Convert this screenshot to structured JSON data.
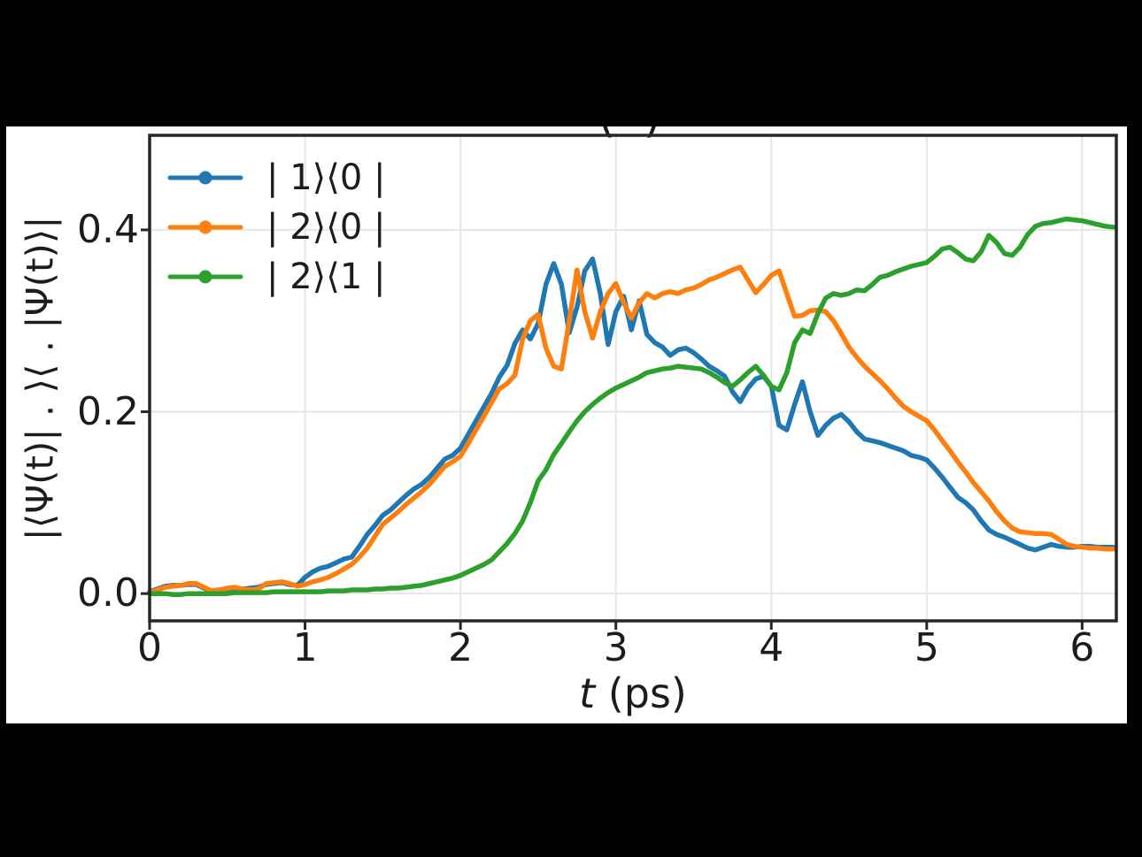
{
  "figure": {
    "background": "#000000",
    "canvas_color": "#ffffff",
    "title_fragment": "( )"
  },
  "axes": {
    "x": {
      "label_var": "t",
      "label_unit": " (ps)"
    },
    "y": {
      "label": "|⟨Ψ(t)| . ⟩⟨ . |Ψ(t)⟩|"
    },
    "spine_color": "#262626",
    "grid_color": "#e6e6e6",
    "tick_label_color": "#1c1c1c"
  },
  "legend": {
    "position": "upper left",
    "items": [
      {
        "label": "| 1⟩⟨0 |",
        "color": "#1f77b4",
        "marker": "circle"
      },
      {
        "label": "| 2⟩⟨0 |",
        "color": "#ff7f0e",
        "marker": "circle"
      },
      {
        "label": "| 2⟩⟨1 |",
        "color": "#2ca02c",
        "marker": "circle"
      }
    ]
  },
  "chart_data": {
    "type": "line",
    "xlabel": "t (ps)",
    "ylabel": "|⟨Ψ(t)| . ⟩⟨ . |Ψ(t)⟩|",
    "grid": true,
    "legend_position": "upper left",
    "xlim": [
      0,
      6.22
    ],
    "ylim": [
      -0.03,
      0.504
    ],
    "x_ticks": [
      0,
      1,
      2,
      3,
      4,
      5,
      6
    ],
    "x_tick_labels": [
      "0",
      "1",
      "2",
      "3",
      "4",
      "5",
      "6"
    ],
    "y_ticks": [
      0.0,
      0.2,
      0.4
    ],
    "y_tick_labels": [
      "0.0",
      "0.2",
      "0.4"
    ],
    "x_start": 0.0,
    "x_step": 0.05,
    "series": [
      {
        "name": "| 1⟩⟨0 |",
        "color": "#1f77b4",
        "values": [
          0.002,
          0.005,
          0.008,
          0.009,
          0.009,
          0.01,
          0.01,
          0.006,
          0.003,
          0.004,
          0.005,
          0.006,
          0.005,
          0.006,
          0.007,
          0.01,
          0.011,
          0.012,
          0.01,
          0.009,
          0.018,
          0.024,
          0.028,
          0.03,
          0.034,
          0.038,
          0.04,
          0.052,
          0.065,
          0.075,
          0.086,
          0.092,
          0.1,
          0.108,
          0.115,
          0.12,
          0.128,
          0.138,
          0.148,
          0.152,
          0.16,
          0.175,
          0.19,
          0.205,
          0.22,
          0.238,
          0.251,
          0.275,
          0.29,
          0.28,
          0.297,
          0.34,
          0.363,
          0.34,
          0.287,
          0.315,
          0.355,
          0.368,
          0.33,
          0.274,
          0.31,
          0.327,
          0.29,
          0.322,
          0.285,
          0.276,
          0.271,
          0.262,
          0.268,
          0.27,
          0.265,
          0.258,
          0.25,
          0.245,
          0.239,
          0.222,
          0.211,
          0.226,
          0.236,
          0.239,
          0.228,
          0.185,
          0.18,
          0.208,
          0.233,
          0.2,
          0.174,
          0.185,
          0.193,
          0.197,
          0.189,
          0.178,
          0.17,
          0.168,
          0.166,
          0.163,
          0.16,
          0.157,
          0.152,
          0.15,
          0.147,
          0.138,
          0.128,
          0.117,
          0.106,
          0.1,
          0.092,
          0.08,
          0.07,
          0.065,
          0.062,
          0.058,
          0.054,
          0.05,
          0.048,
          0.051,
          0.054,
          0.052,
          0.051,
          0.051,
          0.052,
          0.052,
          0.051,
          0.051,
          0.051
        ]
      },
      {
        "name": "| 2⟩⟨0 |",
        "color": "#ff7f0e",
        "values": [
          0.001,
          0.004,
          0.007,
          0.008,
          0.009,
          0.011,
          0.011,
          0.007,
          0.003,
          0.004,
          0.006,
          0.007,
          0.005,
          0.004,
          0.005,
          0.011,
          0.012,
          0.013,
          0.011,
          0.008,
          0.01,
          0.013,
          0.015,
          0.018,
          0.022,
          0.027,
          0.032,
          0.04,
          0.05,
          0.063,
          0.076,
          0.083,
          0.09,
          0.098,
          0.105,
          0.112,
          0.12,
          0.13,
          0.14,
          0.145,
          0.151,
          0.165,
          0.18,
          0.195,
          0.21,
          0.225,
          0.231,
          0.24,
          0.28,
          0.3,
          0.307,
          0.27,
          0.25,
          0.247,
          0.3,
          0.356,
          0.31,
          0.281,
          0.31,
          0.33,
          0.341,
          0.32,
          0.303,
          0.32,
          0.33,
          0.325,
          0.33,
          0.332,
          0.33,
          0.334,
          0.336,
          0.34,
          0.345,
          0.348,
          0.352,
          0.356,
          0.359,
          0.345,
          0.331,
          0.34,
          0.35,
          0.355,
          0.33,
          0.305,
          0.306,
          0.311,
          0.312,
          0.31,
          0.3,
          0.286,
          0.271,
          0.26,
          0.25,
          0.242,
          0.234,
          0.225,
          0.215,
          0.206,
          0.2,
          0.195,
          0.19,
          0.18,
          0.168,
          0.157,
          0.145,
          0.134,
          0.122,
          0.112,
          0.102,
          0.09,
          0.08,
          0.072,
          0.068,
          0.067,
          0.066,
          0.066,
          0.065,
          0.06,
          0.054,
          0.052,
          0.051,
          0.05,
          0.05,
          0.049,
          0.049
        ]
      },
      {
        "name": "| 2⟩⟨1 |",
        "color": "#2ca02c",
        "values": [
          0.0,
          0.0,
          0.0,
          -0.001,
          -0.001,
          0.0,
          0.0,
          0.0,
          0.0,
          0.0,
          0.0,
          0.001,
          0.001,
          0.001,
          0.001,
          0.001,
          0.002,
          0.002,
          0.002,
          0.002,
          0.002,
          0.002,
          0.002,
          0.003,
          0.003,
          0.003,
          0.004,
          0.004,
          0.004,
          0.005,
          0.005,
          0.006,
          0.006,
          0.007,
          0.008,
          0.009,
          0.011,
          0.013,
          0.015,
          0.017,
          0.02,
          0.024,
          0.028,
          0.032,
          0.037,
          0.046,
          0.055,
          0.066,
          0.08,
          0.1,
          0.124,
          0.136,
          0.153,
          0.165,
          0.178,
          0.19,
          0.2,
          0.208,
          0.215,
          0.221,
          0.226,
          0.23,
          0.234,
          0.238,
          0.243,
          0.245,
          0.247,
          0.248,
          0.25,
          0.249,
          0.248,
          0.247,
          0.243,
          0.238,
          0.232,
          0.228,
          0.235,
          0.243,
          0.25,
          0.24,
          0.228,
          0.224,
          0.243,
          0.276,
          0.29,
          0.286,
          0.308,
          0.325,
          0.33,
          0.328,
          0.33,
          0.334,
          0.333,
          0.34,
          0.348,
          0.35,
          0.354,
          0.357,
          0.36,
          0.362,
          0.364,
          0.371,
          0.379,
          0.381,
          0.375,
          0.368,
          0.366,
          0.376,
          0.394,
          0.386,
          0.374,
          0.372,
          0.381,
          0.395,
          0.404,
          0.407,
          0.408,
          0.41,
          0.412,
          0.411,
          0.41,
          0.408,
          0.406,
          0.404,
          0.403
        ]
      }
    ]
  }
}
